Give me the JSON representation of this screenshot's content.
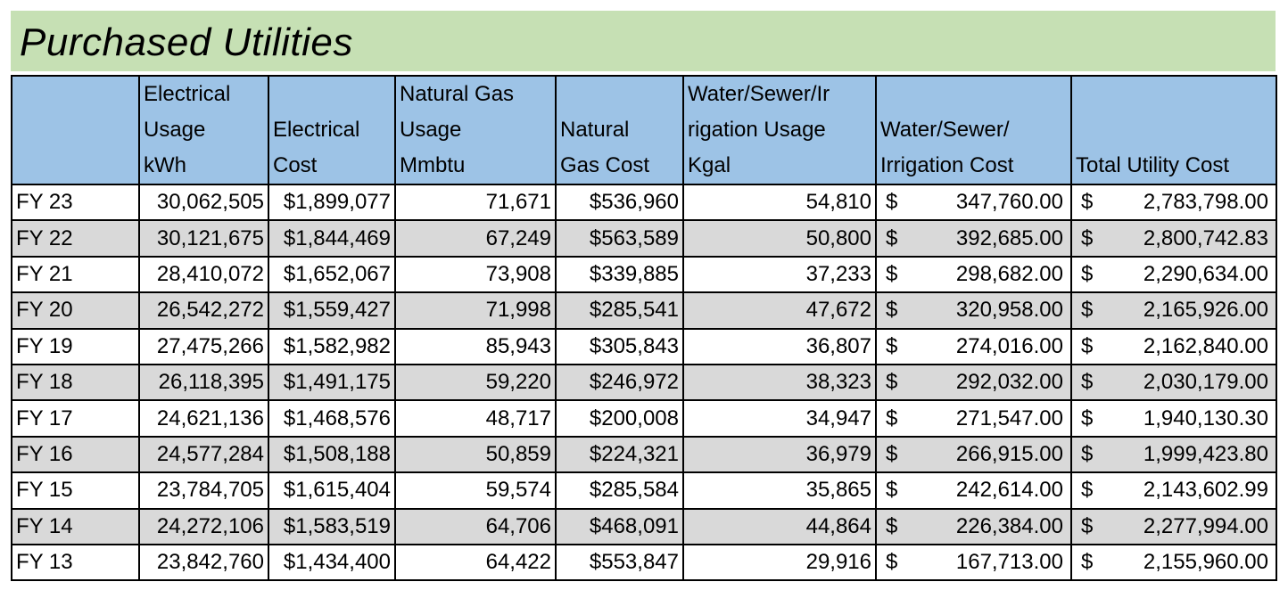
{
  "title": "Purchased Utilities",
  "headers": {
    "fiscal_year": "",
    "electrical_usage": [
      "Electrical",
      "Usage",
      "kWh"
    ],
    "electrical_cost": [
      "Electrical",
      "Cost"
    ],
    "gas_usage": [
      "Natural Gas",
      "Usage",
      "Mmbtu"
    ],
    "gas_cost": [
      "Natural",
      "Gas Cost"
    ],
    "water_usage": [
      "Water/Sewer/Ir",
      "rigation Usage",
      "Kgal"
    ],
    "water_cost": [
      "Water/Sewer/",
      "Irrigation  Cost"
    ],
    "total_cost": [
      "Total Utility Cost"
    ]
  },
  "currency_symbol": "$",
  "rows": [
    {
      "fy": "FY 23",
      "elec_usage": "30,062,505",
      "elec_cost": "$1,899,077",
      "gas_usage": "71,671",
      "gas_cost": "$536,960",
      "water_usage": "54,810",
      "water_cost": "347,760.00",
      "total_cost": "2,783,798.00"
    },
    {
      "fy": "FY 22",
      "elec_usage": "30,121,675",
      "elec_cost": "$1,844,469",
      "gas_usage": "67,249",
      "gas_cost": "$563,589",
      "water_usage": "50,800",
      "water_cost": "392,685.00",
      "total_cost": "2,800,742.83"
    },
    {
      "fy": "FY 21",
      "elec_usage": "28,410,072",
      "elec_cost": "$1,652,067",
      "gas_usage": "73,908",
      "gas_cost": "$339,885",
      "water_usage": "37,233",
      "water_cost": "298,682.00",
      "total_cost": "2,290,634.00"
    },
    {
      "fy": "FY 20",
      "elec_usage": "26,542,272",
      "elec_cost": "$1,559,427",
      "gas_usage": "71,998",
      "gas_cost": "$285,541",
      "water_usage": "47,672",
      "water_cost": "320,958.00",
      "total_cost": "2,165,926.00"
    },
    {
      "fy": "FY 19",
      "elec_usage": "27,475,266",
      "elec_cost": "$1,582,982",
      "gas_usage": "85,943",
      "gas_cost": "$305,843",
      "water_usage": "36,807",
      "water_cost": "274,016.00",
      "total_cost": "2,162,840.00"
    },
    {
      "fy": "FY 18",
      "elec_usage": "26,118,395",
      "elec_cost": "$1,491,175",
      "gas_usage": "59,220",
      "gas_cost": "$246,972",
      "water_usage": "38,323",
      "water_cost": "292,032.00",
      "total_cost": "2,030,179.00"
    },
    {
      "fy": "FY 17",
      "elec_usage": "24,621,136",
      "elec_cost": "$1,468,576",
      "gas_usage": "48,717",
      "gas_cost": "$200,008",
      "water_usage": "34,947",
      "water_cost": "271,547.00",
      "total_cost": "1,940,130.30"
    },
    {
      "fy": "FY 16",
      "elec_usage": "24,577,284",
      "elec_cost": "$1,508,188",
      "gas_usage": "50,859",
      "gas_cost": "$224,321",
      "water_usage": "36,979",
      "water_cost": "266,915.00",
      "total_cost": "1,999,423.80"
    },
    {
      "fy": "FY 15",
      "elec_usage": "23,784,705",
      "elec_cost": "$1,615,404",
      "gas_usage": "59,574",
      "gas_cost": "$285,584",
      "water_usage": "35,865",
      "water_cost": "242,614.00",
      "total_cost": "2,143,602.99"
    },
    {
      "fy": "FY 14",
      "elec_usage": "24,272,106",
      "elec_cost": "$1,583,519",
      "gas_usage": "64,706",
      "gas_cost": "$468,091",
      "water_usage": "44,864",
      "water_cost": "226,384.00",
      "total_cost": "2,277,994.00"
    },
    {
      "fy": "FY 13",
      "elec_usage": "23,842,760",
      "elec_cost": "$1,434,400",
      "gas_usage": "64,422",
      "gas_cost": "$553,847",
      "water_usage": "29,916",
      "water_cost": "167,713.00",
      "total_cost": "2,155,960.00"
    }
  ],
  "colors": {
    "title_bg": "#c6e0b4",
    "header_bg": "#9dc3e6",
    "shaded_row_bg": "#d9d9d9"
  }
}
